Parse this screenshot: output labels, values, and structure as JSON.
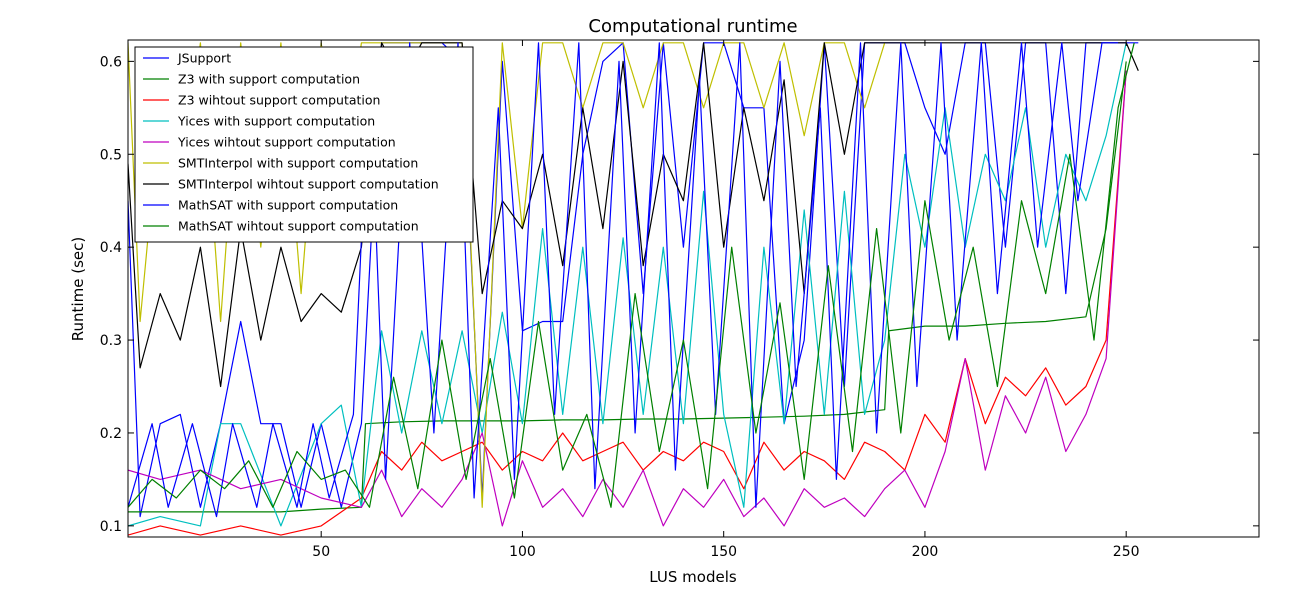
{
  "chart_data": {
    "type": "line",
    "title": "Computational runtime",
    "xlabel": "LUS models",
    "ylabel": "Runtime (sec)",
    "xlim": [
      2,
      283
    ],
    "ylim": [
      0.088,
      0.623
    ],
    "x_ticks": [
      50,
      100,
      150,
      200,
      250
    ],
    "y_ticks": [
      0.1,
      0.2,
      0.3,
      0.4,
      0.5,
      0.6
    ],
    "y_tick_labels": [
      "0.1",
      "0.2",
      "0.3",
      "0.4",
      "0.5",
      "0.6"
    ],
    "grid": false,
    "legend_position": "top-left",
    "series": [
      {
        "name": "JSupport",
        "color": "#0000ff",
        "x": [
          2,
          5,
          10,
          15,
          20,
          25,
          30,
          35,
          40,
          45,
          50,
          55,
          60,
          65,
          70,
          75,
          80,
          85,
          90,
          95,
          100,
          105,
          110,
          115,
          120,
          125,
          130,
          135,
          140,
          145,
          150,
          155,
          160,
          165,
          170,
          175,
          180,
          185,
          190,
          195,
          200,
          205,
          210,
          215,
          220,
          225,
          230,
          235,
          240,
          245,
          250,
          253
        ],
        "y": [
          0.45,
          0.11,
          0.21,
          0.22,
          0.12,
          0.21,
          0.32,
          0.21,
          0.21,
          0.12,
          0.21,
          0.12,
          0.21,
          0.62,
          0.62,
          0.62,
          0.62,
          0.6,
          0.13,
          0.6,
          0.31,
          0.32,
          0.32,
          0.5,
          0.6,
          0.62,
          0.35,
          0.62,
          0.4,
          0.62,
          0.62,
          0.55,
          0.55,
          0.21,
          0.3,
          0.62,
          0.25,
          0.62,
          0.62,
          0.62,
          0.55,
          0.5,
          0.62,
          0.62,
          0.4,
          0.62,
          0.62,
          0.35,
          0.62,
          0.62,
          0.62,
          0.62
        ]
      },
      {
        "name": "Z3 with support computation",
        "color": "#008000",
        "x": [
          2,
          10,
          20,
          30,
          40,
          50,
          60,
          61,
          70,
          80,
          90,
          100,
          110,
          120,
          130,
          140,
          150,
          160,
          170,
          180,
          190,
          191,
          200,
          210,
          220,
          230,
          240,
          245,
          250
        ],
        "y": [
          0.115,
          0.115,
          0.115,
          0.115,
          0.115,
          0.118,
          0.12,
          0.21,
          0.212,
          0.213,
          0.213,
          0.213,
          0.214,
          0.214,
          0.215,
          0.215,
          0.216,
          0.217,
          0.218,
          0.22,
          0.225,
          0.31,
          0.315,
          0.315,
          0.318,
          0.32,
          0.325,
          0.42,
          0.6
        ]
      },
      {
        "name": "Z3 wihtout support computation",
        "color": "#ff0000",
        "x": [
          2,
          10,
          20,
          30,
          40,
          50,
          60,
          65,
          70,
          75,
          80,
          85,
          90,
          95,
          100,
          105,
          110,
          115,
          120,
          125,
          130,
          135,
          140,
          145,
          150,
          155,
          160,
          165,
          170,
          175,
          180,
          185,
          190,
          195,
          200,
          205,
          210,
          215,
          220,
          225,
          230,
          235,
          240,
          245,
          250
        ],
        "y": [
          0.09,
          0.1,
          0.09,
          0.1,
          0.09,
          0.1,
          0.13,
          0.18,
          0.16,
          0.19,
          0.17,
          0.18,
          0.19,
          0.16,
          0.18,
          0.17,
          0.2,
          0.17,
          0.18,
          0.19,
          0.16,
          0.18,
          0.17,
          0.19,
          0.18,
          0.14,
          0.19,
          0.16,
          0.18,
          0.17,
          0.15,
          0.19,
          0.18,
          0.16,
          0.22,
          0.19,
          0.28,
          0.21,
          0.26,
          0.24,
          0.27,
          0.23,
          0.25,
          0.3,
          0.59
        ]
      },
      {
        "name": "Yices with support computation",
        "color": "#00bfbf",
        "x": [
          2,
          10,
          20,
          25,
          30,
          40,
          50,
          55,
          60,
          65,
          70,
          75,
          80,
          85,
          90,
          95,
          100,
          105,
          110,
          115,
          120,
          125,
          130,
          135,
          140,
          145,
          150,
          155,
          160,
          165,
          170,
          175,
          180,
          185,
          190,
          195,
          200,
          205,
          210,
          215,
          220,
          225,
          230,
          235,
          240,
          245,
          250
        ],
        "y": [
          0.1,
          0.11,
          0.1,
          0.21,
          0.21,
          0.1,
          0.21,
          0.23,
          0.12,
          0.31,
          0.2,
          0.31,
          0.21,
          0.31,
          0.2,
          0.33,
          0.21,
          0.42,
          0.22,
          0.4,
          0.21,
          0.41,
          0.22,
          0.4,
          0.21,
          0.46,
          0.22,
          0.12,
          0.4,
          0.21,
          0.44,
          0.22,
          0.46,
          0.22,
          0.3,
          0.5,
          0.4,
          0.55,
          0.4,
          0.5,
          0.45,
          0.55,
          0.4,
          0.5,
          0.45,
          0.52,
          0.62
        ]
      },
      {
        "name": "Yices wihtout support computation",
        "color": "#bf00bf",
        "x": [
          2,
          10,
          20,
          30,
          40,
          50,
          60,
          65,
          70,
          75,
          80,
          85,
          90,
          95,
          100,
          105,
          110,
          115,
          120,
          125,
          130,
          135,
          140,
          145,
          150,
          155,
          160,
          165,
          170,
          175,
          180,
          185,
          190,
          195,
          200,
          205,
          210,
          215,
          220,
          225,
          230,
          235,
          240,
          245,
          250
        ],
        "y": [
          0.16,
          0.15,
          0.16,
          0.14,
          0.15,
          0.13,
          0.12,
          0.16,
          0.11,
          0.14,
          0.12,
          0.15,
          0.2,
          0.1,
          0.17,
          0.12,
          0.14,
          0.11,
          0.15,
          0.12,
          0.16,
          0.1,
          0.14,
          0.12,
          0.15,
          0.11,
          0.13,
          0.1,
          0.14,
          0.12,
          0.13,
          0.11,
          0.14,
          0.16,
          0.12,
          0.18,
          0.28,
          0.16,
          0.24,
          0.2,
          0.26,
          0.18,
          0.22,
          0.28,
          0.59
        ]
      },
      {
        "name": "SMTInterpol with support computation",
        "color": "#bfbf00",
        "x": [
          2,
          5,
          10,
          15,
          20,
          25,
          30,
          35,
          40,
          45,
          50,
          55,
          60,
          65,
          70,
          75,
          80,
          85,
          90,
          95,
          100,
          105,
          110,
          115,
          120,
          125,
          130,
          135,
          140,
          145,
          150,
          155,
          160,
          165,
          170,
          175,
          180,
          185,
          190
        ],
        "y": [
          0.62,
          0.32,
          0.55,
          0.45,
          0.62,
          0.32,
          0.62,
          0.4,
          0.62,
          0.35,
          0.62,
          0.45,
          0.62,
          0.62,
          0.62,
          0.62,
          0.62,
          0.62,
          0.12,
          0.62,
          0.42,
          0.62,
          0.62,
          0.55,
          0.62,
          0.62,
          0.55,
          0.62,
          0.62,
          0.55,
          0.62,
          0.62,
          0.55,
          0.62,
          0.52,
          0.62,
          0.62,
          0.55,
          0.62
        ]
      },
      {
        "name": "SMTInterpol wihtout support computation",
        "color": "#000000",
        "x": [
          2,
          5,
          10,
          15,
          20,
          25,
          30,
          35,
          40,
          45,
          50,
          55,
          60,
          65,
          70,
          75,
          80,
          85,
          90,
          95,
          100,
          105,
          110,
          115,
          120,
          125,
          130,
          135,
          140,
          145,
          150,
          155,
          160,
          165,
          170,
          175,
          180,
          185,
          190,
          195,
          200,
          205,
          210,
          215,
          220,
          225,
          230,
          235,
          240,
          245,
          250,
          253
        ],
        "y": [
          0.49,
          0.27,
          0.35,
          0.3,
          0.4,
          0.25,
          0.42,
          0.3,
          0.4,
          0.32,
          0.35,
          0.33,
          0.4,
          0.62,
          0.58,
          0.62,
          0.62,
          0.62,
          0.35,
          0.45,
          0.42,
          0.5,
          0.38,
          0.55,
          0.42,
          0.6,
          0.38,
          0.5,
          0.45,
          0.62,
          0.4,
          0.55,
          0.45,
          0.58,
          0.35,
          0.62,
          0.5,
          0.62,
          0.62,
          0.62,
          0.62,
          0.62,
          0.62,
          0.62,
          0.62,
          0.62,
          0.62,
          0.62,
          0.62,
          0.62,
          0.62,
          0.59
        ]
      },
      {
        "name": "MathSAT with support computation",
        "color": "#0000ff",
        "x": [
          2,
          8,
          12,
          18,
          24,
          28,
          34,
          38,
          44,
          48,
          52,
          58,
          62,
          66,
          72,
          78,
          84,
          88,
          94,
          98,
          104,
          108,
          114,
          118,
          124,
          128,
          134,
          138,
          144,
          148,
          154,
          158,
          164,
          168,
          174,
          178,
          184,
          188,
          194,
          198,
          204,
          208,
          214,
          218,
          224,
          228,
          234,
          238,
          244,
          248
        ],
        "y": [
          0.12,
          0.21,
          0.12,
          0.21,
          0.11,
          0.21,
          0.12,
          0.21,
          0.12,
          0.21,
          0.13,
          0.22,
          0.6,
          0.15,
          0.62,
          0.2,
          0.62,
          0.13,
          0.55,
          0.15,
          0.62,
          0.22,
          0.62,
          0.14,
          0.6,
          0.2,
          0.62,
          0.16,
          0.58,
          0.22,
          0.62,
          0.12,
          0.6,
          0.25,
          0.55,
          0.15,
          0.62,
          0.2,
          0.62,
          0.25,
          0.62,
          0.3,
          0.62,
          0.35,
          0.62,
          0.4,
          0.62,
          0.45,
          0.62,
          0.62
        ]
      },
      {
        "name": "MathSAT wihtout support computation",
        "color": "#008000",
        "x": [
          2,
          8,
          14,
          20,
          26,
          32,
          38,
          44,
          50,
          56,
          62,
          68,
          74,
          80,
          86,
          92,
          98,
          104,
          110,
          116,
          122,
          128,
          134,
          140,
          146,
          152,
          158,
          164,
          170,
          176,
          182,
          188,
          194,
          200,
          206,
          212,
          218,
          224,
          230,
          236,
          242,
          248,
          252
        ],
        "y": [
          0.12,
          0.15,
          0.13,
          0.16,
          0.14,
          0.17,
          0.12,
          0.18,
          0.15,
          0.16,
          0.12,
          0.26,
          0.14,
          0.3,
          0.15,
          0.28,
          0.13,
          0.32,
          0.16,
          0.22,
          0.12,
          0.35,
          0.18,
          0.3,
          0.14,
          0.4,
          0.2,
          0.34,
          0.15,
          0.38,
          0.18,
          0.42,
          0.2,
          0.45,
          0.3,
          0.4,
          0.25,
          0.45,
          0.35,
          0.5,
          0.3,
          0.55,
          0.62
        ]
      }
    ]
  }
}
